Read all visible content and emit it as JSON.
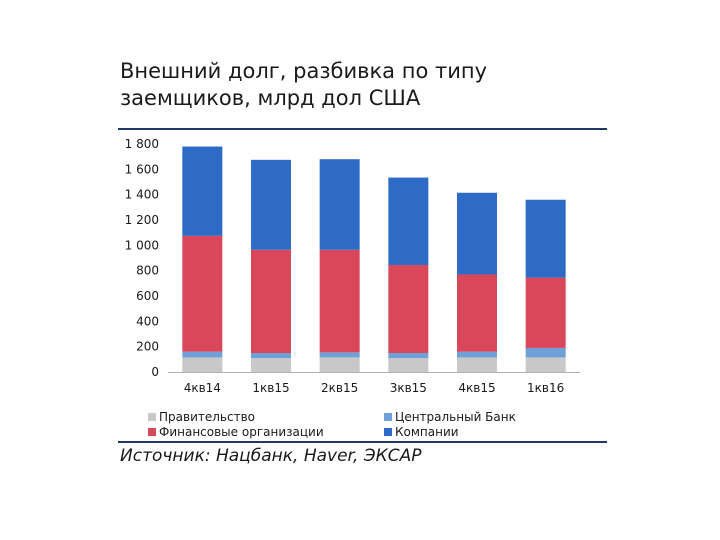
{
  "title": "Внешний долг, разбивка по типу заемщиков, млрд дол США",
  "source": "Источник: Нацбанк, Haver, ЭКСАР",
  "colors": {
    "rule": "#1f3864",
    "government": "#c8c8c8",
    "central_bank": "#6fa0d8",
    "financial": "#d9475b",
    "companies": "#2e6bc6"
  },
  "chart_data": {
    "type": "bar",
    "stacked": true,
    "categories": [
      "4кв14",
      "1кв15",
      "2кв15",
      "3кв15",
      "4кв15",
      "1кв16"
    ],
    "y_ticks": [
      "0",
      "200",
      "400",
      "600",
      "800",
      "1 000",
      "1 200",
      "1 400",
      "1 600",
      "1 800"
    ],
    "ylim": [
      0,
      1800
    ],
    "grid": false,
    "legend_position": "bottom",
    "series": [
      {
        "name": "Правительство",
        "color": "#c8c8c8",
        "values": [
          115,
          110,
          115,
          110,
          115,
          115
        ]
      },
      {
        "name": "Центральный Банк",
        "color": "#6fa0d8",
        "values": [
          45,
          40,
          40,
          40,
          45,
          75
        ]
      },
      {
        "name": "Финансовые организации",
        "color": "#d9475b",
        "values": [
          915,
          815,
          810,
          695,
          610,
          555
        ]
      },
      {
        "name": "Компании",
        "color": "#2e6bc6",
        "values": [
          705,
          710,
          715,
          690,
          645,
          615
        ]
      }
    ]
  }
}
